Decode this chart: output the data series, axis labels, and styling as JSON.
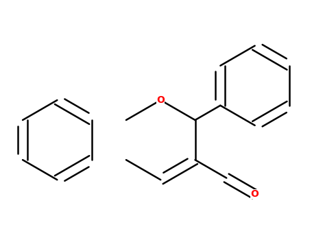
{
  "background_color": "#ffffff",
  "bond_color": "#000000",
  "O_color": "#ff0000",
  "line_width": 1.8,
  "fig_width": 4.55,
  "fig_height": 3.5,
  "dpi": 100
}
